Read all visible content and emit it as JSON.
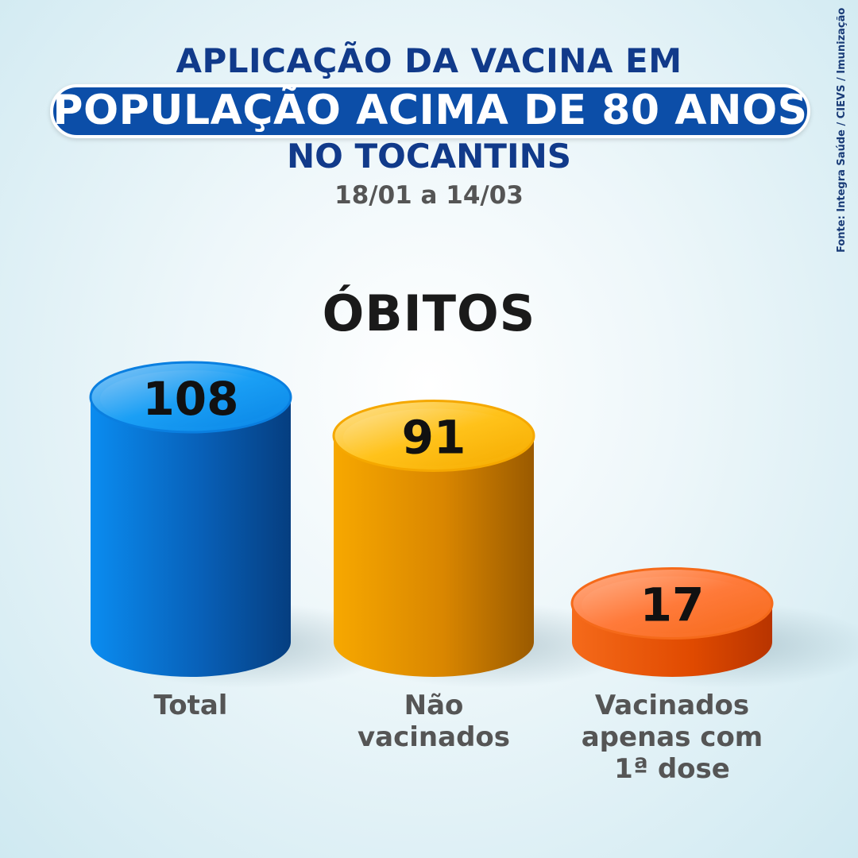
{
  "header": {
    "line1": "APLICAÇÃO DA VACINA EM",
    "line2": "POPULAÇÃO ACIMA DE 80 ANOS",
    "line3": "NO TOCANTINS",
    "period": "18/01 a 14/03",
    "source": "Fonte: Integra Saúde / CIEVS / Imunização"
  },
  "chart_data": {
    "type": "bar",
    "title": "ÓBITOS",
    "categories": [
      "Total",
      "Não vacinados",
      "Vacinados apenas com 1ª dose"
    ],
    "values": [
      108,
      91,
      17
    ],
    "data_labels": [
      "108",
      "91",
      "17"
    ],
    "category_label_lines": [
      [
        "Total"
      ],
      [
        "Não",
        "vacinados"
      ],
      [
        "Vacinados",
        "apenas com",
        "1ª dose"
      ]
    ],
    "colors": [
      "#0a7fe0",
      "#f5a800",
      "#f56a1a"
    ],
    "ylim": [
      0,
      108
    ]
  }
}
